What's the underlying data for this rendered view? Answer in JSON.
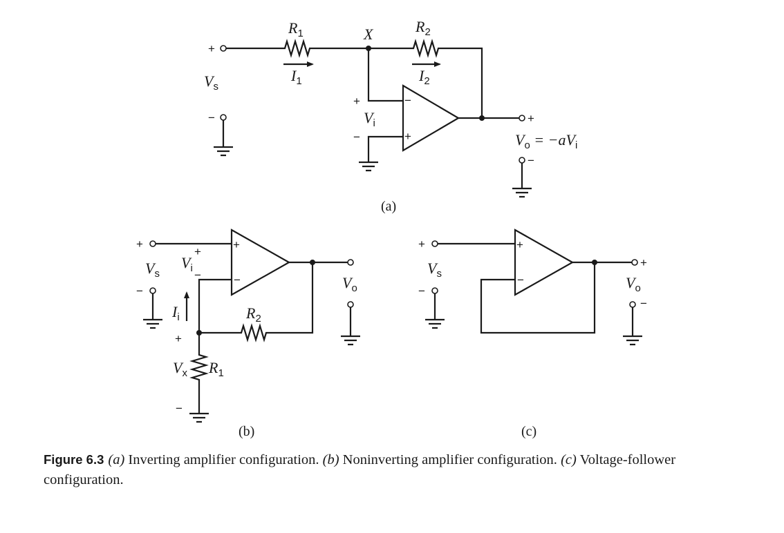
{
  "figure": {
    "number": "Figure 6.3",
    "caption_parts": {
      "a_tag": "(a)",
      "a_text": " Inverting amplifier configuration. ",
      "b_tag": "(b)",
      "b_text": " Noninverting amplifier configuration. ",
      "c_tag": "(c)",
      "c_text": " Voltage-follower configuration."
    }
  },
  "panel_a": {
    "label": "(a)",
    "node_x": "X",
    "r1": {
      "base": "R",
      "sub": "1"
    },
    "r2": {
      "base": "R",
      "sub": "2"
    },
    "i1": {
      "base": "I",
      "sub": "1"
    },
    "i2": {
      "base": "I",
      "sub": "2"
    },
    "vs": {
      "base": "V",
      "sub": "s"
    },
    "vi": {
      "base": "V",
      "sub": "i"
    },
    "vo_eq": {
      "base": "V",
      "sub": "o",
      "rhs_lead": " = −aV",
      "rhs_sub": "i"
    },
    "plus": "+",
    "minus": "−"
  },
  "panel_b": {
    "label": "(b)",
    "vs": {
      "base": "V",
      "sub": "s"
    },
    "vi": {
      "base": "V",
      "sub": "i"
    },
    "ii": {
      "base": "I",
      "sub": "i"
    },
    "vx": {
      "base": "V",
      "sub": "x"
    },
    "r1": {
      "base": "R",
      "sub": "1"
    },
    "r2": {
      "base": "R",
      "sub": "2"
    },
    "vo": {
      "base": "V",
      "sub": "o"
    },
    "plus": "+",
    "minus": "−"
  },
  "panel_c": {
    "label": "(c)",
    "vs": {
      "base": "V",
      "sub": "s"
    },
    "vo": {
      "base": "V",
      "sub": "o"
    },
    "plus": "+",
    "minus": "−"
  },
  "colors": {
    "ink": "#1a1a1a",
    "background": "#ffffff"
  }
}
